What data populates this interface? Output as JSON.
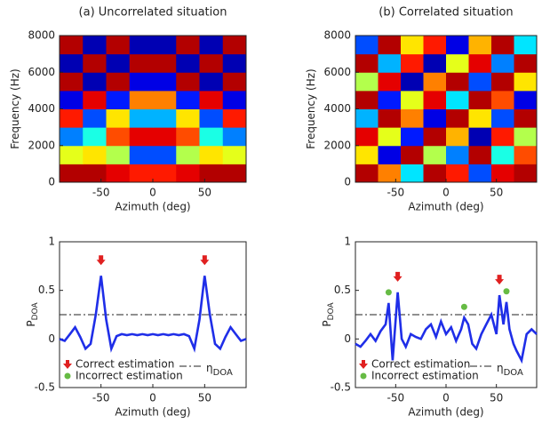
{
  "chart_data": [
    {
      "type": "heatmap",
      "title": "(a) Uncorrelated situation",
      "x_label": "Azimuth (deg)",
      "y_label": "Frequency (Hz)",
      "xlim": [
        -90,
        90
      ],
      "xticks": [
        -50,
        0,
        50
      ],
      "ylim": [
        0,
        8000
      ],
      "yticks": [
        0,
        2000,
        4000,
        6000,
        8000
      ],
      "clim": [
        -1,
        1
      ],
      "z": [
        [
          0.9,
          0.9,
          0.8,
          0.7,
          0.7,
          0.8,
          0.9,
          0.9
        ],
        [
          0.2,
          0.3,
          0.1,
          -0.6,
          -0.6,
          0.1,
          0.3,
          0.2
        ],
        [
          -0.5,
          -0.2,
          0.6,
          0.8,
          0.8,
          0.6,
          -0.2,
          -0.5
        ],
        [
          0.7,
          -0.6,
          0.3,
          -0.4,
          -0.4,
          0.3,
          -0.6,
          0.7
        ],
        [
          -0.8,
          0.8,
          -0.7,
          0.5,
          0.5,
          -0.7,
          0.8,
          -0.8
        ],
        [
          0.9,
          -0.9,
          0.9,
          -0.8,
          -0.8,
          0.9,
          -0.9,
          0.9
        ],
        [
          -0.9,
          0.9,
          -0.9,
          0.9,
          0.9,
          -0.9,
          0.9,
          -0.9
        ],
        [
          0.9,
          -0.9,
          0.9,
          -0.9,
          -0.9,
          0.9,
          -0.9,
          0.9
        ]
      ]
    },
    {
      "type": "heatmap",
      "title": "(b) Correlated situation",
      "x_label": "Azimuth (deg)",
      "y_label": "Frequency (Hz)",
      "xlim": [
        -90,
        90
      ],
      "xticks": [
        -50,
        0,
        50
      ],
      "ylim": [
        0,
        8000
      ],
      "yticks": [
        0,
        2000,
        4000,
        6000,
        8000
      ],
      "clim": [
        -1,
        1
      ],
      "z": [
        [
          0.9,
          0.5,
          -0.3,
          0.9,
          0.7,
          -0.6,
          0.8,
          0.9
        ],
        [
          0.3,
          -0.8,
          0.9,
          0.1,
          -0.5,
          0.9,
          -0.2,
          0.6
        ],
        [
          0.8,
          0.2,
          -0.7,
          0.9,
          0.4,
          -0.9,
          0.7,
          0.1
        ],
        [
          -0.4,
          0.9,
          0.5,
          -0.8,
          0.9,
          0.3,
          -0.6,
          0.9
        ],
        [
          0.9,
          -0.7,
          0.2,
          0.8,
          -0.3,
          0.9,
          0.6,
          -0.8
        ],
        [
          0.1,
          0.8,
          -0.9,
          0.5,
          0.9,
          -0.6,
          0.9,
          0.3
        ],
        [
          0.9,
          -0.4,
          0.7,
          -0.9,
          0.2,
          0.8,
          -0.5,
          0.9
        ],
        [
          -0.6,
          0.9,
          0.3,
          0.7,
          -0.8,
          0.4,
          0.9,
          -0.3
        ]
      ]
    },
    {
      "type": "line",
      "x_label": "Azimuth (deg)",
      "y_label": "P",
      "y_label_sub": "DOA",
      "xlim": [
        -90,
        90
      ],
      "xticks": [
        -50,
        0,
        50
      ],
      "ylim": [
        -0.5,
        1
      ],
      "yticks": [
        -0.5,
        0,
        0.5,
        1
      ],
      "color": "#1f2ee8",
      "x": [
        -90,
        -85,
        -80,
        -75,
        -70,
        -65,
        -60,
        -55,
        -50,
        -45,
        -40,
        -35,
        -30,
        -25,
        -20,
        -15,
        -10,
        -5,
        0,
        5,
        10,
        15,
        20,
        25,
        30,
        35,
        40,
        45,
        50,
        55,
        60,
        65,
        70,
        75,
        80,
        85,
        90
      ],
      "values": [
        0.0,
        -0.02,
        0.05,
        0.12,
        0.02,
        -0.1,
        -0.05,
        0.25,
        0.65,
        0.2,
        -0.1,
        0.03,
        0.05,
        0.04,
        0.05,
        0.04,
        0.05,
        0.04,
        0.05,
        0.04,
        0.05,
        0.04,
        0.05,
        0.04,
        0.05,
        0.03,
        -0.1,
        0.2,
        0.65,
        0.25,
        -0.05,
        -0.1,
        0.02,
        0.12,
        0.05,
        -0.02,
        0.0
      ],
      "threshold": 0.25,
      "threshold_label": "η",
      "threshold_label_sub": "DOA",
      "legend": [
        {
          "name": "Correct estimation",
          "color": "#e02020"
        },
        {
          "name": "Incorrect estimation",
          "color": "#66bb44"
        }
      ],
      "correct_estimates": [
        -50,
        50
      ]
    },
    {
      "type": "line",
      "x_label": "Azimuth (deg)",
      "y_label": "P",
      "y_label_sub": "DOA",
      "xlim": [
        -90,
        90
      ],
      "xticks": [
        -50,
        0,
        50
      ],
      "ylim": [
        -0.5,
        1
      ],
      "yticks": [
        -0.5,
        0,
        0.5,
        1
      ],
      "color": "#1f2ee8",
      "x": [
        -90,
        -85,
        -80,
        -75,
        -70,
        -65,
        -60,
        -57,
        -53,
        -48,
        -44,
        -40,
        -35,
        -30,
        -25,
        -20,
        -15,
        -10,
        -5,
        0,
        5,
        10,
        15,
        18,
        22,
        26,
        30,
        35,
        40,
        45,
        50,
        53,
        57,
        60,
        63,
        67,
        70,
        75,
        80,
        85,
        90
      ],
      "values": [
        -0.05,
        -0.08,
        -0.02,
        0.05,
        -0.02,
        0.08,
        0.15,
        0.37,
        -0.22,
        0.48,
        0.0,
        -0.08,
        0.05,
        0.02,
        0.0,
        0.1,
        0.15,
        0.02,
        0.18,
        0.05,
        0.12,
        -0.02,
        0.1,
        0.22,
        0.15,
        -0.05,
        -0.1,
        0.05,
        0.15,
        0.25,
        0.05,
        0.45,
        0.15,
        0.38,
        0.1,
        -0.05,
        -0.12,
        -0.22,
        0.05,
        0.1,
        0.05
      ],
      "threshold": 0.25,
      "threshold_label": "η",
      "threshold_label_sub": "DOA",
      "legend": [
        {
          "name": "Correct estimation",
          "color": "#e02020"
        },
        {
          "name": "Incorrect estimation",
          "color": "#66bb44"
        }
      ],
      "correct_estimates": [
        -48,
        53
      ],
      "incorrect_estimates": [
        -57,
        18,
        60
      ]
    }
  ]
}
